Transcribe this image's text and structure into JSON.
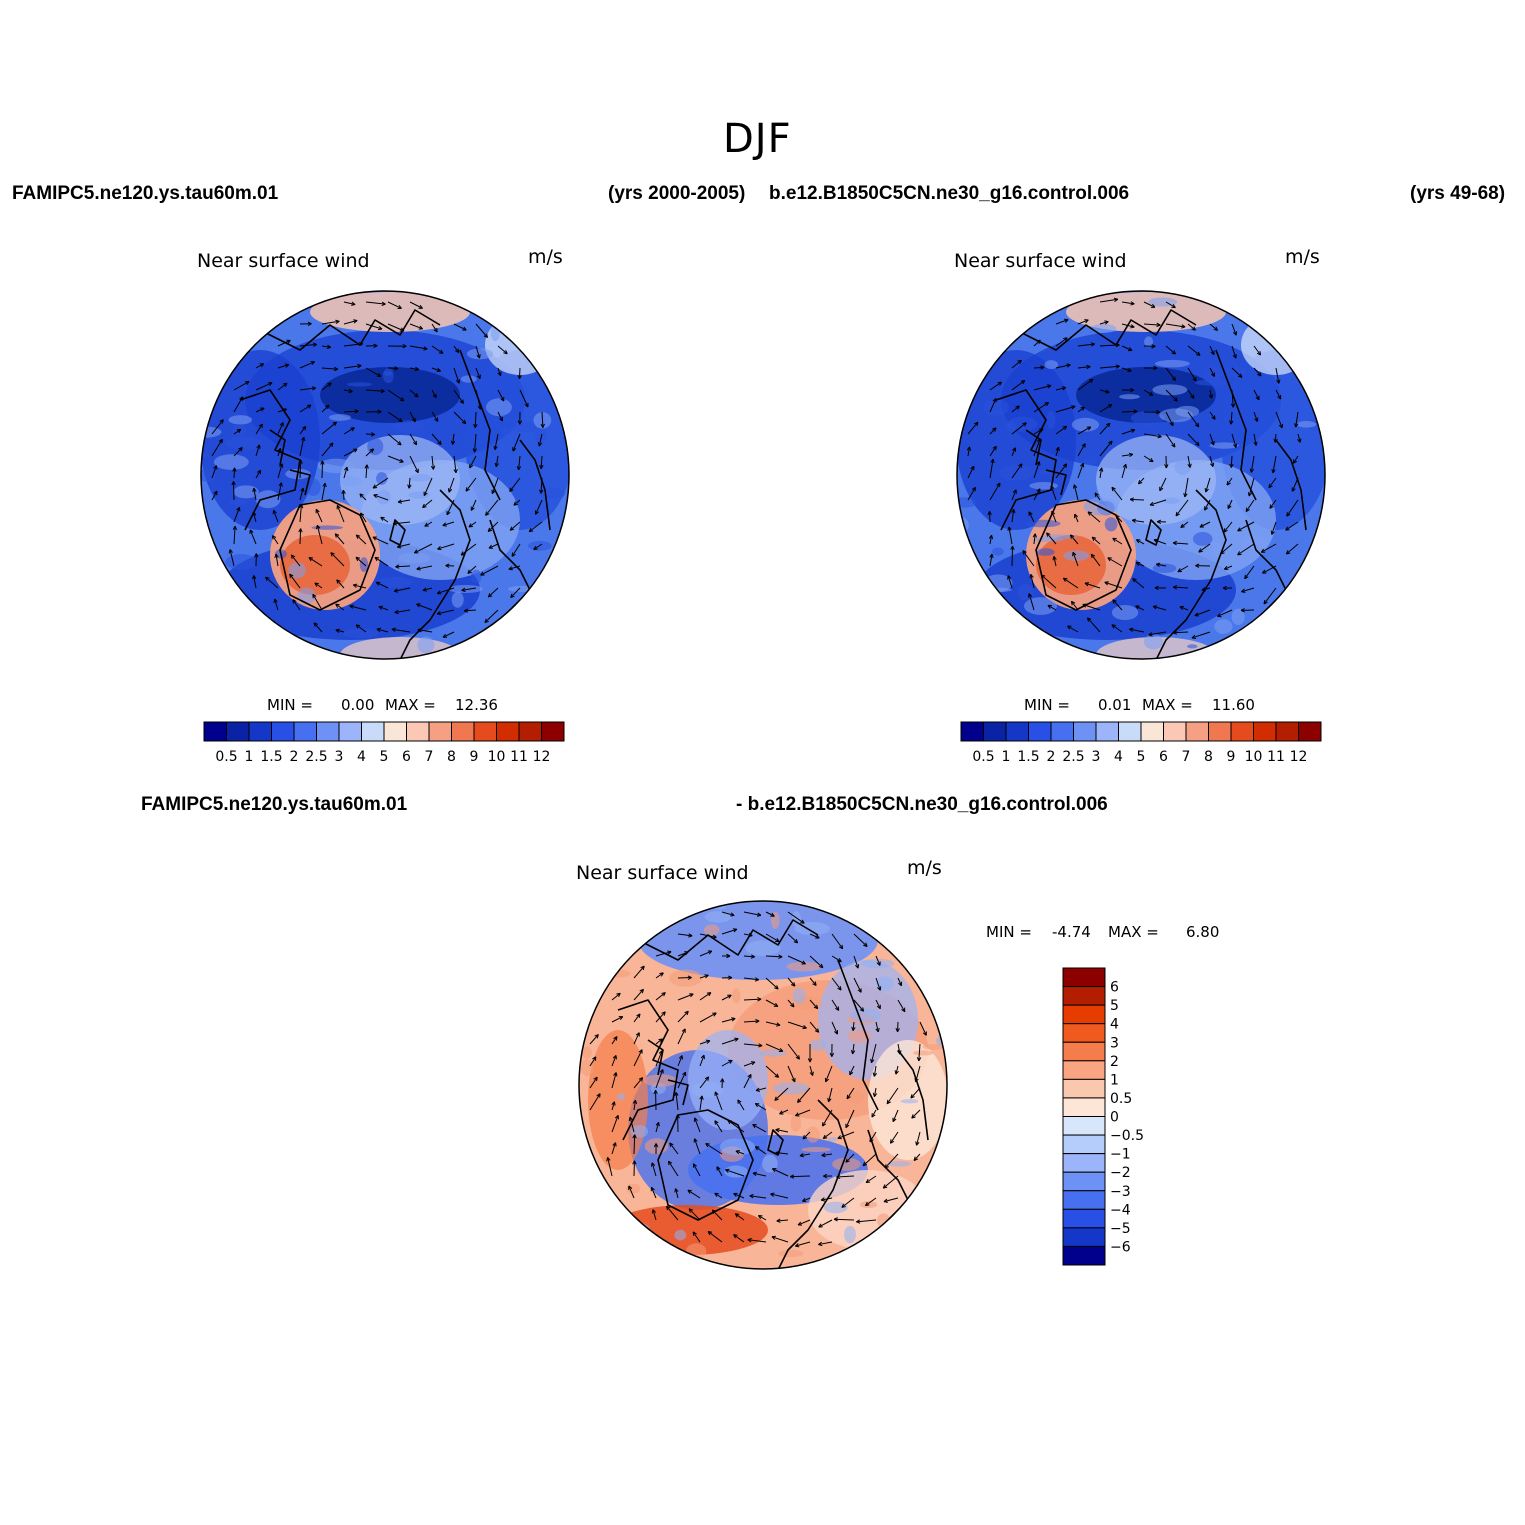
{
  "title": "DJF",
  "case_left": "FAMIPC5.ne120.ys.tau60m.01",
  "years_left": "(yrs 2000-2005)",
  "case_right": "b.e12.B1850C5CN.ne30_g16.control.006",
  "years_right": "(yrs 49-68)",
  "diff_case_left": "FAMIPC5.ne120.ys.tau60m.01",
  "diff_case_right": "- b.e12.B1850C5CN.ne30_g16.control.006",
  "panels": [
    {
      "title": "Near surface wind",
      "units": "m/s",
      "min_label": "MIN =",
      "min": "0.00",
      "max_label": "MAX =",
      "max": "12.36"
    },
    {
      "title": "Near surface wind",
      "units": "m/s",
      "min_label": "MIN =",
      "min": "0.01",
      "max_label": "MAX =",
      "max": "11.60"
    },
    {
      "title": "Near surface wind",
      "units": "m/s",
      "min_label": "MIN =",
      "min": "-4.74",
      "max_label": "MAX =",
      "max": "6.80"
    }
  ],
  "colorbar_abs": {
    "ticks": [
      "0.5",
      "1",
      "1.5",
      "2",
      "2.5",
      "3",
      "4",
      "5",
      "6",
      "7",
      "8",
      "9",
      "10",
      "11",
      "12"
    ],
    "colors": [
      "#00008c",
      "#0a23a5",
      "#1437c8",
      "#2850e6",
      "#4670f0",
      "#6e91f5",
      "#9bb4fa",
      "#c8dcfa",
      "#fae6d7",
      "#fac8b4",
      "#f5a082",
      "#f07850",
      "#e64b1e",
      "#d22d00",
      "#b41e00",
      "#8c0000"
    ]
  },
  "colorbar_diff": {
    "ticks": [
      "6",
      "5",
      "4",
      "3",
      "2",
      "1",
      "0.5",
      "0",
      "−0.5",
      "−1",
      "−2",
      "−3",
      "−4",
      "−5",
      "−6"
    ],
    "colors": [
      "#8c0000",
      "#b41e00",
      "#e63c00",
      "#f05a1e",
      "#f57d4b",
      "#faa582",
      "#fac8af",
      "#fde6d7",
      "#d7e6fa",
      "#b4cdfa",
      "#9bb4fa",
      "#6e91f5",
      "#4670f0",
      "#2850e6",
      "#1437c8",
      "#00008c"
    ]
  }
}
